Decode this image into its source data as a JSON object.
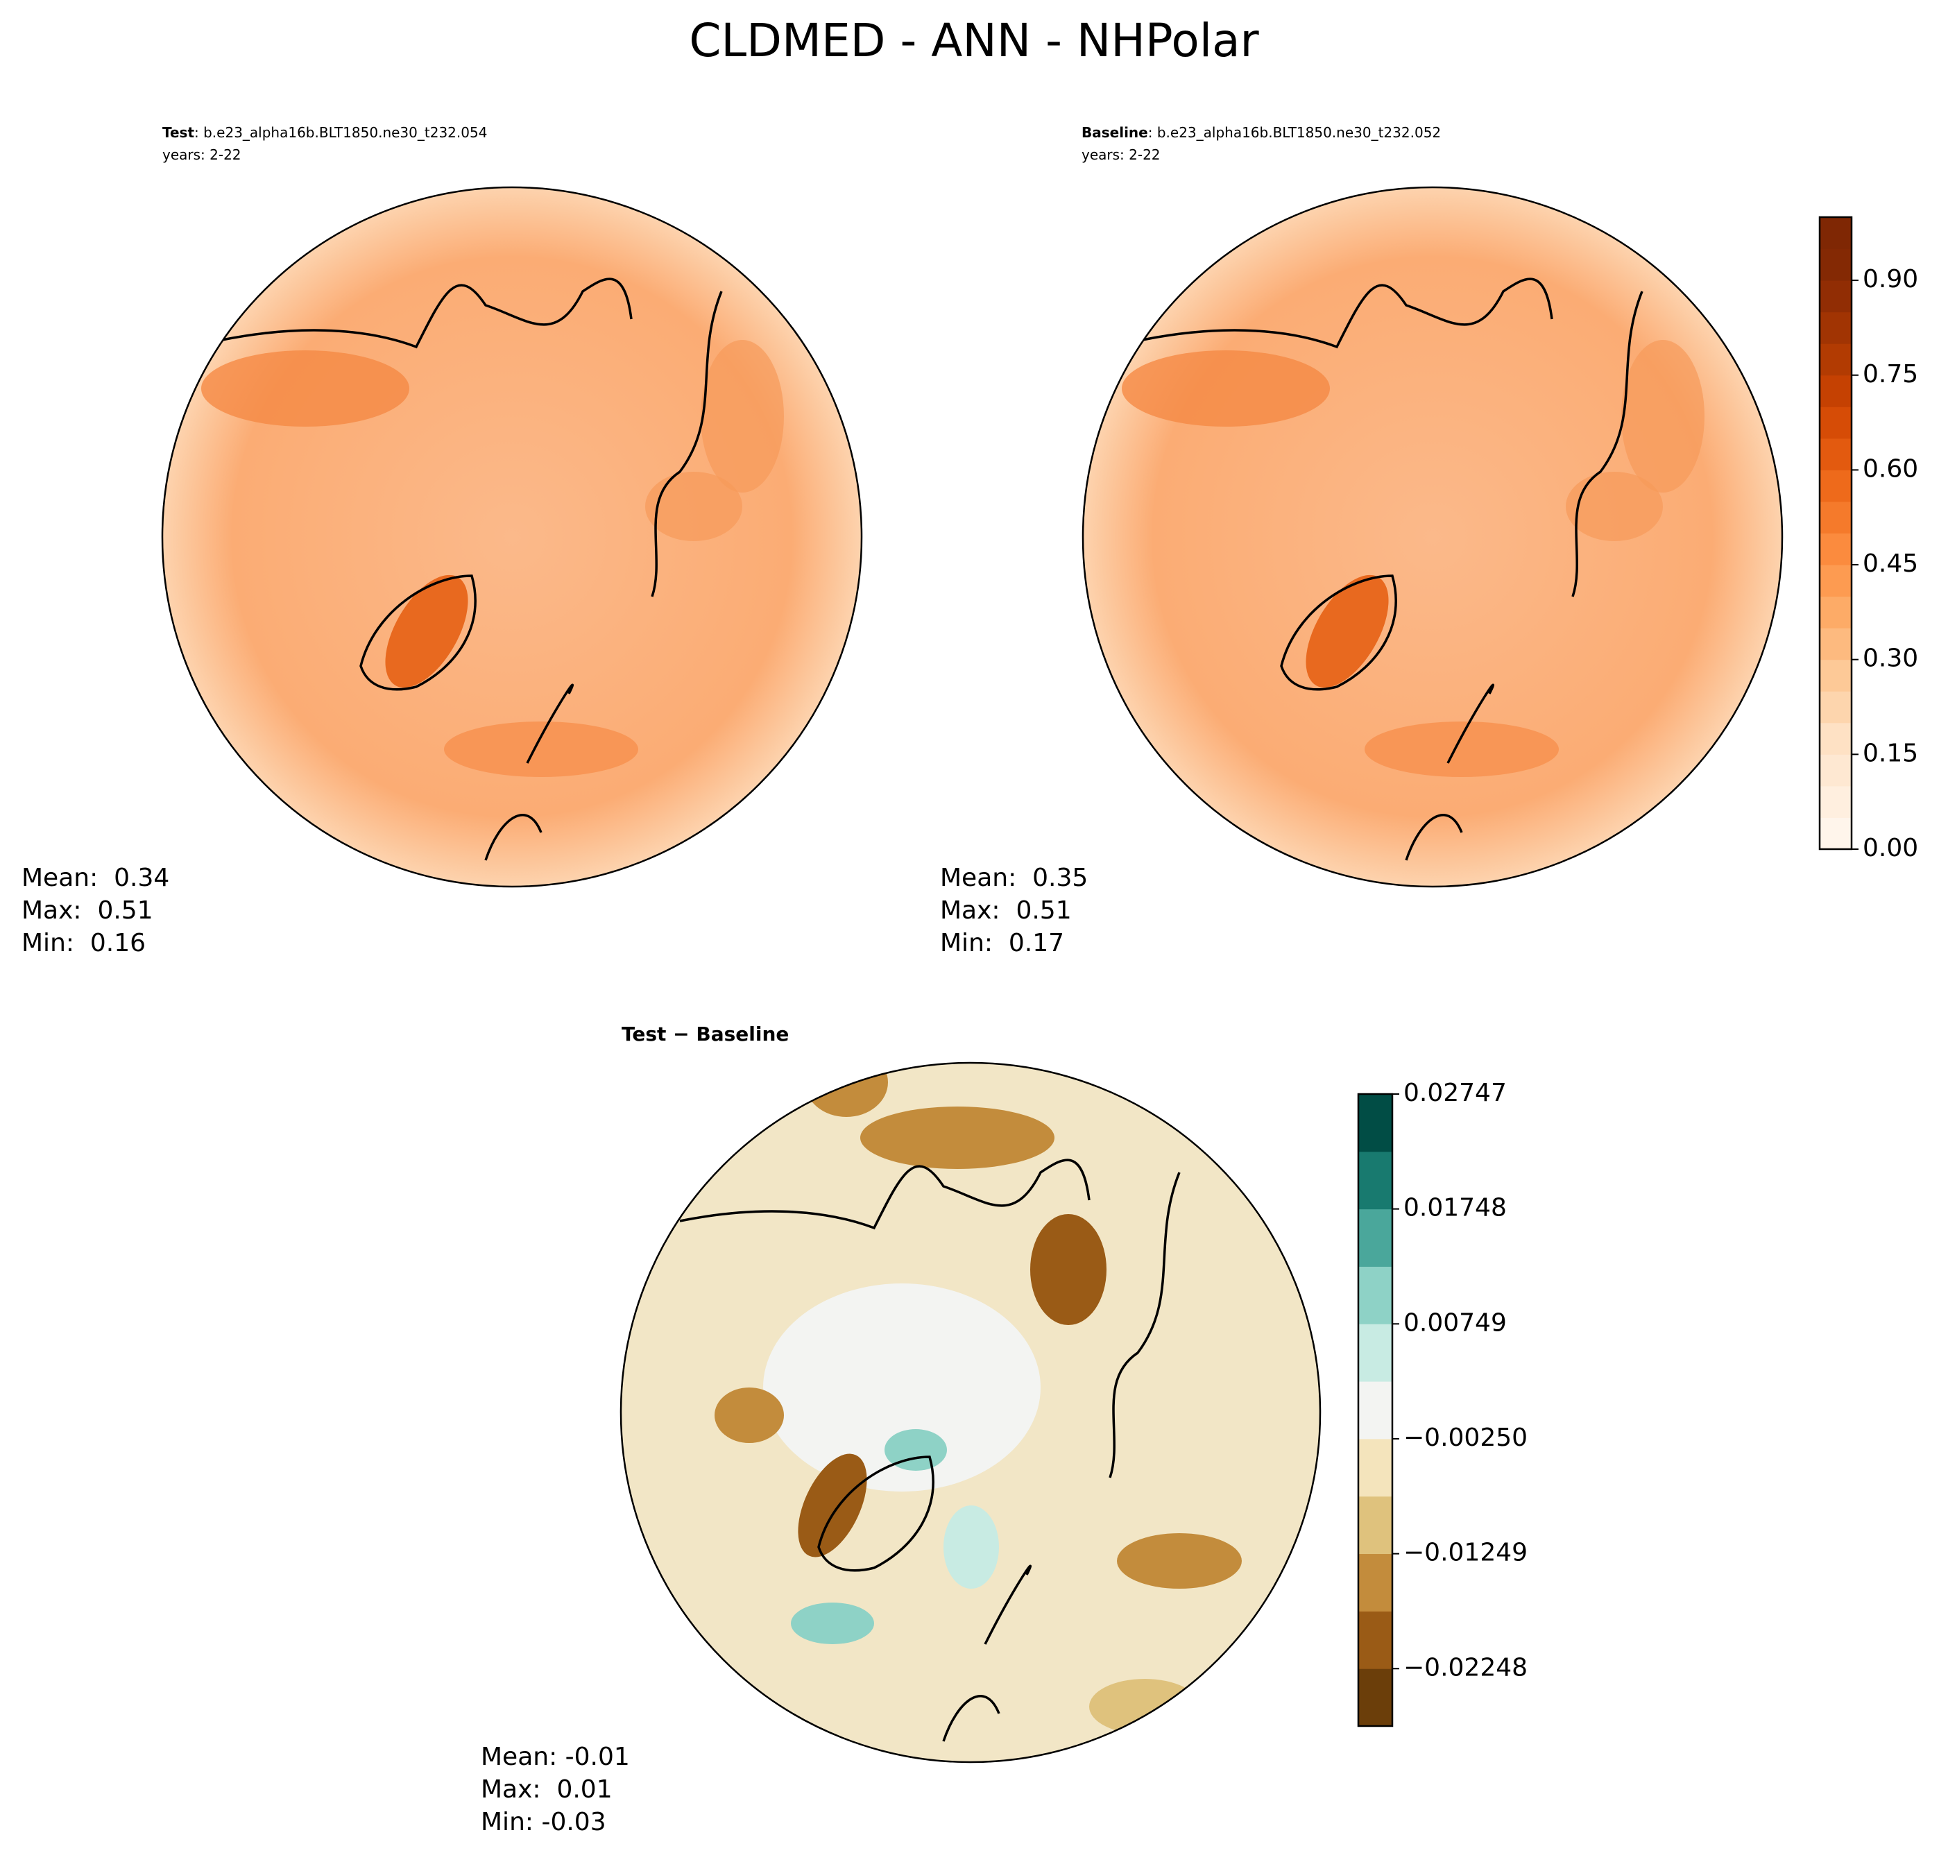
{
  "title": "CLDMED - ANN - NHPolar",
  "panels": [
    {
      "label": "Test",
      "text": ": b.e23_alpha16b.BLT1850.ne30_t232.054",
      "years": "years: 2-22",
      "stats": [
        "Mean:  0.34",
        "Max:  0.51",
        "Min:  0.16"
      ]
    },
    {
      "label": "Baseline",
      "text": ": b.e23_alpha16b.BLT1850.ne30_t232.052",
      "years": "years: 2-22",
      "stats": [
        "Mean:  0.35",
        "Max:  0.51",
        "Min:  0.17"
      ]
    },
    {
      "title": "Test − Baseline",
      "stats": [
        "Mean: -0.01",
        "Max:  0.01",
        "Min: -0.03"
      ]
    }
  ],
  "colorbars": [
    {
      "lim": [
        0,
        1.0
      ],
      "ticks": [
        {
          "value": 0,
          "label": "0.00"
        },
        0.15,
        {
          "value": 0.3,
          "label": "0.30"
        },
        0.45,
        {
          "value": 0.6,
          "label": "0.60"
        },
        0.75,
        {
          "value": 0.9,
          "label": "0.90"
        }
      ],
      "colors": [
        "#fff5eb",
        "#ffefdf",
        "#fee8d2",
        "#fee1c4",
        "#fdd5ad",
        "#fdc997",
        "#fdba7f",
        "#fdab67",
        "#fd9b51",
        "#fb8b3e",
        "#f57a2b",
        "#ee6a1b",
        "#e35a0f",
        "#d64c06",
        "#c54102",
        "#b23b02",
        "#a13403",
        "#912d04",
        "#842904",
        "#7f2704"
      ]
    },
    {
      "lim": [
        -0.02747,
        0.02747
      ],
      "ticks": [
        {
          "value": -0.02248,
          "label": "−0.02248"
        },
        {
          "value": -0.01249,
          "label": "−0.01249"
        },
        {
          "value": -0.0025,
          "label": "−0.00250"
        },
        0.00749,
        0.01748,
        0.02747
      ],
      "colors": [
        "#6b3e0a",
        "#9a5b16",
        "#c38c3c",
        "#dfc27d",
        "#f4e4bc",
        "#f3f4f2",
        "#c8ebe3",
        "#8ed2c6",
        "#4aa79b",
        "#187a6f",
        "#014d45"
      ]
    }
  ]
}
